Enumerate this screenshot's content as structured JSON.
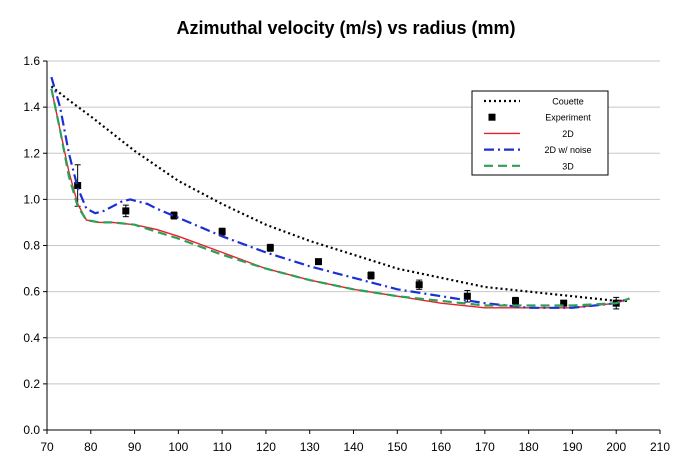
{
  "chart_data": {
    "type": "line",
    "title": "Azimuthal velocity (m/s) vs radius (mm)",
    "xlabel": "",
    "ylabel": "",
    "xlim": [
      70,
      210
    ],
    "ylim": [
      0.0,
      1.6
    ],
    "x_ticks": [
      70,
      80,
      90,
      100,
      110,
      120,
      130,
      140,
      150,
      160,
      170,
      180,
      190,
      200,
      210
    ],
    "y_ticks": [
      "0.0",
      "0.2",
      "0.4",
      "0.6",
      "0.8",
      "1.0",
      "1.2",
      "1.4",
      "1.6"
    ],
    "grid": "horizontal",
    "legend_position": "top-right",
    "series": [
      {
        "name": "Couette",
        "style": "dotted",
        "color": "#000000",
        "x": [
          71,
          75,
          80,
          90,
          100,
          110,
          120,
          130,
          140,
          150,
          160,
          170,
          180,
          190,
          200,
          203
        ],
        "y": [
          1.49,
          1.43,
          1.36,
          1.21,
          1.08,
          0.98,
          0.89,
          0.82,
          0.76,
          0.7,
          0.66,
          0.62,
          0.6,
          0.58,
          0.56,
          0.56
        ]
      },
      {
        "name": "Experiment",
        "style": "markers",
        "color": "#000000",
        "x": [
          77,
          88,
          99,
          110,
          121,
          132,
          144,
          155,
          166,
          177,
          188,
          200
        ],
        "y": [
          1.06,
          0.95,
          0.93,
          0.86,
          0.79,
          0.73,
          0.67,
          0.63,
          0.58,
          0.56,
          0.55,
          0.55
        ],
        "err": [
          0.09,
          0.025,
          0.015,
          0.015,
          0.015,
          0.01,
          0.015,
          0.02,
          0.025,
          0.015,
          0.01,
          0.025
        ]
      },
      {
        "name": "2D",
        "style": "solid",
        "color": "#e8202a",
        "x": [
          71,
          73,
          75,
          77,
          79,
          82,
          85,
          90,
          95,
          100,
          110,
          120,
          130,
          140,
          150,
          160,
          170,
          180,
          190,
          200,
          203
        ],
        "y": [
          1.48,
          1.3,
          1.12,
          0.98,
          0.91,
          0.9,
          0.9,
          0.89,
          0.87,
          0.84,
          0.77,
          0.7,
          0.65,
          0.61,
          0.58,
          0.55,
          0.53,
          0.53,
          0.53,
          0.55,
          0.57
        ]
      },
      {
        "name": "2D w/  noise",
        "style": "dash-dot",
        "color": "#1a2fd6",
        "x": [
          71,
          73,
          75,
          77,
          79,
          81,
          83,
          85,
          87,
          89,
          91,
          93,
          95,
          100,
          110,
          120,
          130,
          140,
          150,
          160,
          170,
          180,
          190,
          200,
          203
        ],
        "y": [
          1.53,
          1.4,
          1.2,
          1.05,
          0.96,
          0.94,
          0.95,
          0.97,
          0.99,
          1.0,
          0.99,
          0.98,
          0.96,
          0.92,
          0.84,
          0.77,
          0.71,
          0.66,
          0.61,
          0.58,
          0.55,
          0.53,
          0.53,
          0.55,
          0.57
        ]
      },
      {
        "name": "3D",
        "style": "dashed",
        "color": "#2e9e58",
        "x": [
          71,
          73,
          75,
          77,
          79,
          82,
          85,
          90,
          95,
          100,
          110,
          120,
          130,
          140,
          150,
          160,
          170,
          180,
          190,
          200,
          203
        ],
        "y": [
          1.48,
          1.3,
          1.1,
          0.97,
          0.91,
          0.9,
          0.9,
          0.89,
          0.86,
          0.83,
          0.76,
          0.7,
          0.65,
          0.61,
          0.58,
          0.56,
          0.54,
          0.54,
          0.54,
          0.55,
          0.57
        ]
      }
    ]
  }
}
